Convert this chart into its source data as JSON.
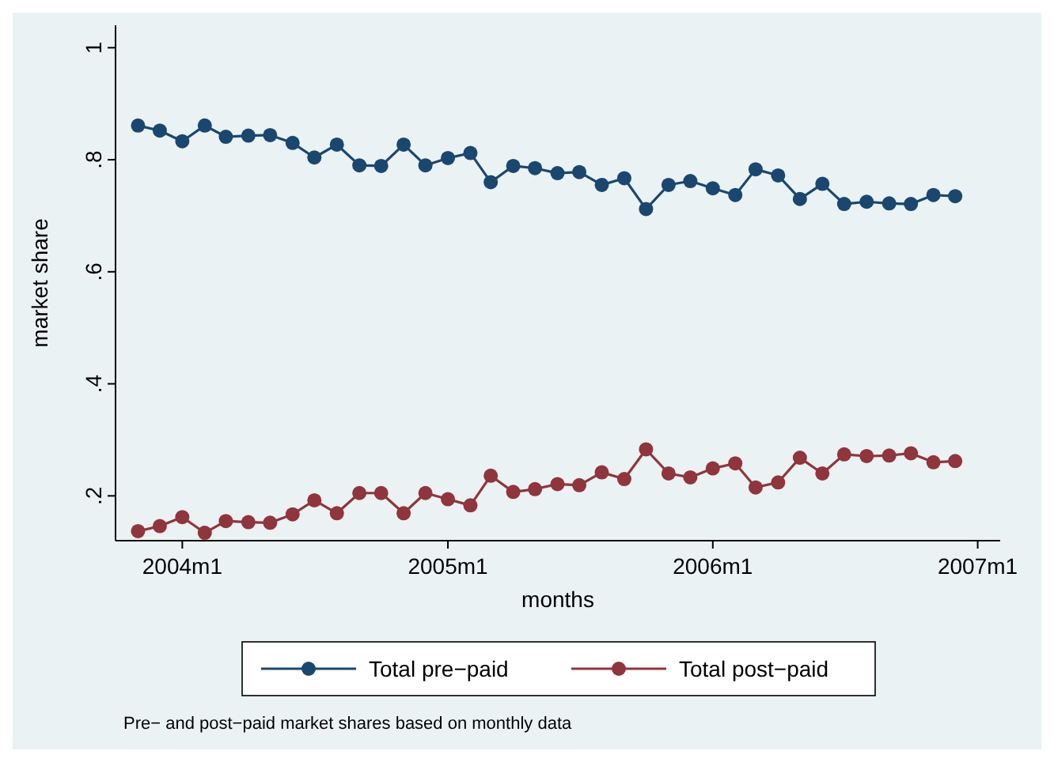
{
  "chart_data": {
    "type": "line",
    "xlabel": "months",
    "ylabel": "market share",
    "x": [
      "2003-11",
      "2003-12",
      "2004-01",
      "2004-02",
      "2004-03",
      "2004-04",
      "2004-05",
      "2004-06",
      "2004-07",
      "2004-08",
      "2004-09",
      "2004-10",
      "2004-11",
      "2004-12",
      "2005-01",
      "2005-02",
      "2005-03",
      "2005-04",
      "2005-05",
      "2005-06",
      "2005-07",
      "2005-08",
      "2005-09",
      "2005-10",
      "2005-11",
      "2005-12",
      "2006-01",
      "2006-02",
      "2006-03",
      "2006-04",
      "2006-05",
      "2006-06",
      "2006-07",
      "2006-08",
      "2006-09",
      "2006-10",
      "2006-11",
      "2006-12"
    ],
    "series": [
      {
        "name": "Total pre−paid",
        "color": "#1a476f",
        "values": [
          0.861,
          0.852,
          0.833,
          0.861,
          0.841,
          0.843,
          0.844,
          0.83,
          0.804,
          0.827,
          0.79,
          0.789,
          0.827,
          0.79,
          0.803,
          0.812,
          0.76,
          0.789,
          0.785,
          0.776,
          0.778,
          0.755,
          0.767,
          0.712,
          0.755,
          0.762,
          0.749,
          0.737,
          0.783,
          0.772,
          0.73,
          0.757,
          0.721,
          0.725,
          0.722,
          0.721,
          0.737,
          0.735
        ]
      },
      {
        "name": "Total post−paid",
        "color": "#90353b",
        "values": [
          0.137,
          0.146,
          0.162,
          0.134,
          0.155,
          0.153,
          0.152,
          0.167,
          0.192,
          0.169,
          0.205,
          0.205,
          0.169,
          0.205,
          0.194,
          0.183,
          0.236,
          0.207,
          0.212,
          0.221,
          0.219,
          0.242,
          0.23,
          0.283,
          0.24,
          0.233,
          0.249,
          0.258,
          0.215,
          0.224,
          0.268,
          0.24,
          0.274,
          0.271,
          0.272,
          0.276,
          0.26,
          0.262
        ]
      }
    ],
    "xlim": [
      "2003-10",
      "2007-02"
    ],
    "xticks": [
      {
        "value": "2004-01",
        "label": "2004m1"
      },
      {
        "value": "2005-01",
        "label": "2005m1"
      },
      {
        "value": "2006-01",
        "label": "2006m1"
      },
      {
        "value": "2007-01",
        "label": "2007m1"
      }
    ],
    "ylim": [
      0.12,
      1.04
    ],
    "yticks": [
      {
        "value": 0.2,
        "label": ".2"
      },
      {
        "value": 0.4,
        "label": ".4"
      },
      {
        "value": 0.6,
        "label": ".6"
      },
      {
        "value": 0.8,
        "label": ".8"
      },
      {
        "value": 1,
        "label": "1"
      }
    ],
    "marker": "circle",
    "line_style": "solid",
    "legend": "bottom",
    "grid": false,
    "annotations": [
      "Pre− and post−paid market shares based on monthly data"
    ]
  }
}
